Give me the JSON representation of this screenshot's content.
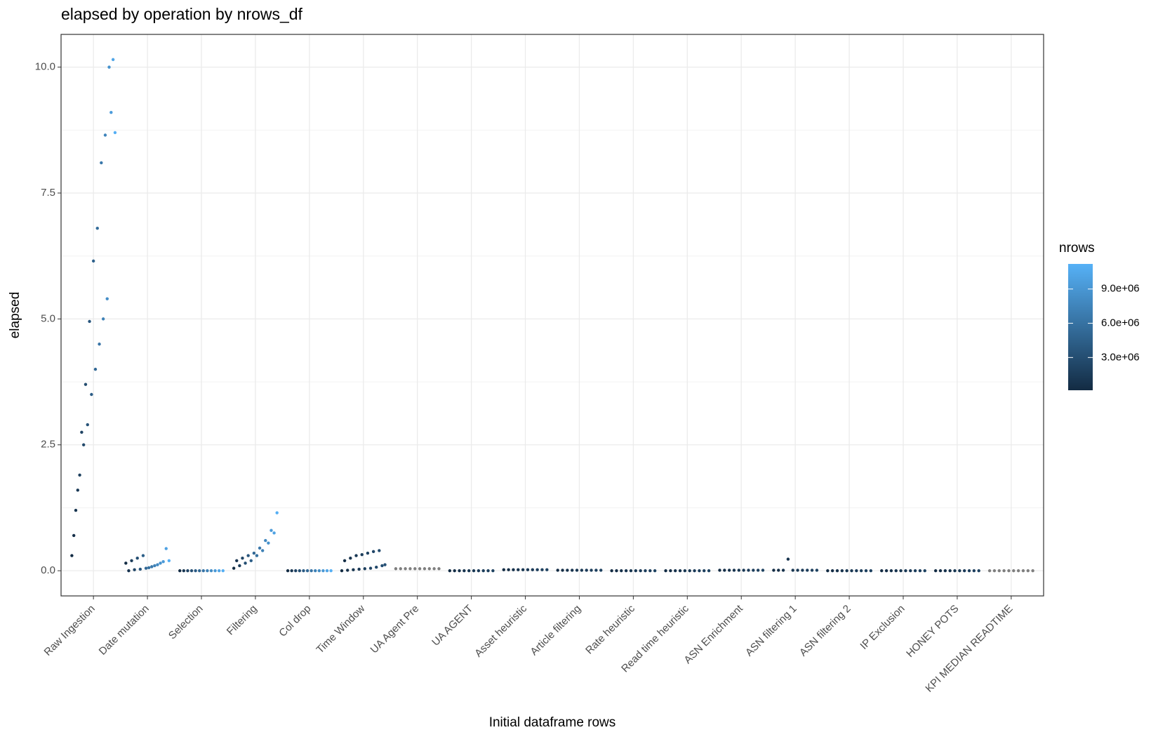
{
  "chart_data": {
    "type": "scatter",
    "title": "elapsed by operation by nrows_df",
    "x_label": "Initial dataframe rows",
    "y_label": "elapsed",
    "categories": [
      "Raw Ingestion",
      "Date mutation",
      "Selection",
      "Filtering",
      "Col drop",
      "Time Window",
      "UA Agent Pre",
      "UA AGENT",
      "Asset heuristic",
      "Article filtering",
      "Rate heuristic",
      "Read time heuristic",
      "ASN Enrichment",
      "ASN filtering 1",
      "ASN filtering 2",
      "IP Exclusion",
      "HONEY POTS",
      "KPI MEDIAN READTIME"
    ],
    "ylim": [
      -0.5,
      10.65
    ],
    "yticks": [
      {
        "value": 0,
        "label": "0.0"
      },
      {
        "value": 2.5,
        "label": "2.5"
      },
      {
        "value": 5,
        "label": "5.0"
      },
      {
        "value": 7.5,
        "label": "7.5"
      },
      {
        "value": 10,
        "label": "10.0"
      }
    ],
    "grid": true,
    "na_color": "#7F7F7F",
    "colorbar": {
      "title": "nrows",
      "lim": [
        130000,
        11200000
      ],
      "low": "#132B43",
      "high": "#56B1F7",
      "ticks": [
        {
          "value": 3000000,
          "label": "3.0e+06"
        },
        {
          "value": 6000000,
          "label": "6.0e+06"
        },
        {
          "value": 9000000,
          "label": "9.0e+06"
        }
      ]
    },
    "groups": [
      {
        "elapsed": [
          0.3,
          0.7,
          1.2,
          1.6,
          1.9,
          2.75,
          2.5,
          3.7,
          2.9,
          4.95,
          3.5,
          6.15,
          4.0,
          6.8,
          4.5,
          8.1,
          5.0,
          8.65,
          5.4,
          10.0,
          9.1,
          10.15,
          8.7
        ],
        "nrows": [
          200000,
          500000,
          1000000,
          1300000,
          1800000,
          2100000,
          2600000,
          2900000,
          3400000,
          3700000,
          4300000,
          4600000,
          5200000,
          5500000,
          6200000,
          6500000,
          7200000,
          7500000,
          8300000,
          8600000,
          9500000,
          10200000,
          11000000
        ]
      },
      {
        "elapsed": [
          0.15,
          0.0,
          0.2,
          0.02,
          0.25,
          0.03,
          0.3,
          0.05,
          0.06,
          0.08,
          0.1,
          0.12,
          0.15,
          0.18,
          0.44,
          0.2
        ],
        "nrows": [
          200000,
          900000,
          1600000,
          2300000,
          3000000,
          3700000,
          4400000,
          5100000,
          5800000,
          6500000,
          7200000,
          7900000,
          8600000,
          9300000,
          10000000,
          11000000
        ]
      },
      {
        "elapsed": [
          0,
          0,
          0,
          0,
          0,
          0,
          0,
          0,
          0,
          0,
          0,
          0
        ],
        "nrows": [
          200000,
          1200000,
          2200000,
          3200000,
          4200000,
          5200000,
          6200000,
          7200000,
          8200000,
          9200000,
          10200000,
          11000000
        ]
      },
      {
        "elapsed": [
          0.05,
          0.2,
          0.1,
          0.25,
          0.15,
          0.3,
          0.2,
          0.35,
          0.3,
          0.45,
          0.4,
          0.6,
          0.55,
          0.8,
          0.75,
          1.15
        ],
        "nrows": [
          200000,
          900000,
          1600000,
          2300000,
          3000000,
          3700000,
          4400000,
          5100000,
          5800000,
          6500000,
          7200000,
          7900000,
          8600000,
          9300000,
          10000000,
          11000000
        ]
      },
      {
        "elapsed": [
          0,
          0,
          0,
          0,
          0,
          0,
          0,
          0,
          0,
          0,
          0,
          0
        ],
        "nrows": [
          200000,
          1200000,
          2200000,
          3200000,
          4200000,
          5200000,
          6200000,
          7200000,
          8200000,
          9200000,
          10200000,
          11000000
        ]
      },
      {
        "elapsed": [
          0.0,
          0.2,
          0.01,
          0.25,
          0.02,
          0.3,
          0.03,
          0.32,
          0.04,
          0.35,
          0.05,
          0.38,
          0.07,
          0.4,
          0.1,
          0.12
        ],
        "nrows": [
          200000,
          400000,
          600000,
          800000,
          1000000,
          1200000,
          1400000,
          1600000,
          1800000,
          2000000,
          2200000,
          2400000,
          2600000,
          2800000,
          3000000,
          3200000
        ]
      },
      {
        "elapsed": [
          0.04,
          0.04,
          0.04,
          0.04,
          0.04,
          0.04,
          0.04,
          0.04,
          0.04,
          0.04
        ],
        "nrows": [
          null,
          null,
          null,
          null,
          null,
          null,
          null,
          null,
          null,
          null
        ]
      },
      {
        "elapsed": [
          0,
          0,
          0,
          0,
          0,
          0,
          0,
          0,
          0,
          0
        ],
        "nrows": [
          200000,
          400000,
          600000,
          800000,
          1000000,
          1200000,
          1400000,
          1600000,
          1800000,
          2000000
        ]
      },
      {
        "elapsed": [
          0.02,
          0.02,
          0.02,
          0.02,
          0.02,
          0.02,
          0.02,
          0.02,
          0.02,
          0.02
        ],
        "nrows": [
          200000,
          400000,
          600000,
          800000,
          1000000,
          1200000,
          1400000,
          1600000,
          1800000,
          2000000
        ]
      },
      {
        "elapsed": [
          0.01,
          0.01,
          0.01,
          0.01,
          0.01,
          0.01,
          0.01,
          0.01,
          0.01,
          0.01
        ],
        "nrows": [
          200000,
          400000,
          600000,
          800000,
          1000000,
          1200000,
          1400000,
          1600000,
          1800000,
          2000000
        ]
      },
      {
        "elapsed": [
          0,
          0,
          0,
          0,
          0,
          0,
          0,
          0,
          0,
          0
        ],
        "nrows": [
          200000,
          400000,
          600000,
          800000,
          1000000,
          1200000,
          1400000,
          1600000,
          1800000,
          2000000
        ]
      },
      {
        "elapsed": [
          0,
          0,
          0,
          0,
          0,
          0,
          0,
          0,
          0,
          0
        ],
        "nrows": [
          200000,
          400000,
          600000,
          800000,
          1000000,
          1200000,
          1400000,
          1600000,
          1800000,
          2000000
        ]
      },
      {
        "elapsed": [
          0.01,
          0.01,
          0.01,
          0.01,
          0.01,
          0.01,
          0.01,
          0.01,
          0.01,
          0.01
        ],
        "nrows": [
          200000,
          400000,
          600000,
          800000,
          1000000,
          1200000,
          1400000,
          1600000,
          1800000,
          2000000
        ]
      },
      {
        "elapsed": [
          0.01,
          0.01,
          0.01,
          0.23,
          0.01,
          0.01,
          0.01,
          0.01,
          0.01,
          0.01
        ],
        "nrows": [
          200000,
          400000,
          600000,
          800000,
          1000000,
          1200000,
          1400000,
          1600000,
          1800000,
          2000000
        ]
      },
      {
        "elapsed": [
          0,
          0,
          0,
          0,
          0,
          0,
          0,
          0,
          0,
          0
        ],
        "nrows": [
          200000,
          400000,
          600000,
          800000,
          1000000,
          1200000,
          1400000,
          1600000,
          1800000,
          2000000
        ]
      },
      {
        "elapsed": [
          0,
          0,
          0,
          0,
          0,
          0,
          0,
          0,
          0,
          0
        ],
        "nrows": [
          200000,
          400000,
          600000,
          800000,
          1000000,
          1200000,
          1400000,
          1600000,
          1800000,
          2000000
        ]
      },
      {
        "elapsed": [
          0,
          0,
          0,
          0,
          0,
          0,
          0,
          0,
          0,
          0
        ],
        "nrows": [
          200000,
          400000,
          600000,
          800000,
          1000000,
          1200000,
          1400000,
          1600000,
          1800000,
          2000000
        ]
      },
      {
        "elapsed": [
          0,
          0,
          0,
          0,
          0,
          0,
          0,
          0,
          0,
          0
        ],
        "nrows": [
          null,
          null,
          null,
          null,
          null,
          null,
          null,
          null,
          null,
          null
        ]
      }
    ]
  }
}
